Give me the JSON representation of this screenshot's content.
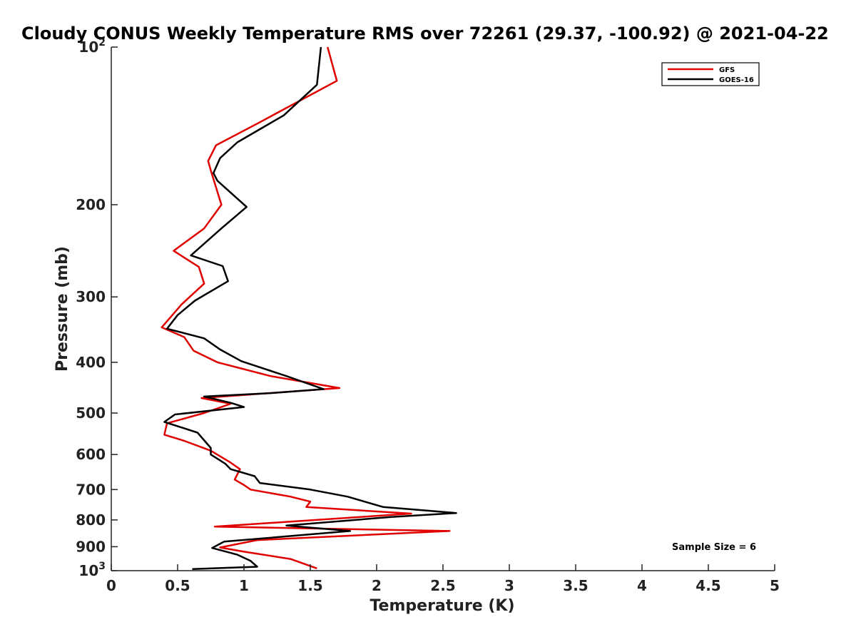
{
  "chart_data": {
    "type": "line",
    "title": "Cloudy CONUS Weekly Temperature RMS over 72261 (29.37, -100.92) @ 2021-04-22",
    "xlabel": "Temperature (K)",
    "ylabel": "Pressure (mb)",
    "xlim": [
      0,
      5
    ],
    "ylim": [
      100,
      1000
    ],
    "y_scale": "log",
    "y_reversed": true,
    "grid": false,
    "legend_position": "top-right",
    "x_ticks": [
      {
        "value": 0,
        "label": "0"
      },
      {
        "value": 0.5,
        "label": "0.5"
      },
      {
        "value": 1,
        "label": "1"
      },
      {
        "value": 1.5,
        "label": "1.5"
      },
      {
        "value": 2,
        "label": "2"
      },
      {
        "value": 2.5,
        "label": "2.5"
      },
      {
        "value": 3,
        "label": "3"
      },
      {
        "value": 3.5,
        "label": "3.5"
      },
      {
        "value": 4,
        "label": "4"
      },
      {
        "value": 4.5,
        "label": "4.5"
      },
      {
        "value": 5,
        "label": "5"
      }
    ],
    "y_ticks": [
      {
        "value": 100,
        "base": "10",
        "exp": "2"
      },
      {
        "value": 200,
        "label": "200"
      },
      {
        "value": 300,
        "label": "300"
      },
      {
        "value": 400,
        "label": "400"
      },
      {
        "value": 500,
        "label": "500"
      },
      {
        "value": 600,
        "label": "600"
      },
      {
        "value": 700,
        "label": "700"
      },
      {
        "value": 800,
        "label": "800"
      },
      {
        "value": 900,
        "label": "900"
      },
      {
        "value": 1000,
        "base": "10",
        "exp": "3"
      }
    ],
    "annotation": "Sample Size = 6",
    "series": [
      {
        "name": "GFS",
        "color": "#e00000",
        "points": [
          [
            1.63,
            100
          ],
          [
            1.7,
            116
          ],
          [
            1.1,
            140
          ],
          [
            0.79,
            154
          ],
          [
            0.73,
            165
          ],
          [
            0.75,
            172
          ],
          [
            0.83,
            200
          ],
          [
            0.7,
            222
          ],
          [
            0.47,
            245
          ],
          [
            0.66,
            263
          ],
          [
            0.7,
            283
          ],
          [
            0.53,
            310
          ],
          [
            0.38,
            343
          ],
          [
            0.55,
            358
          ],
          [
            0.62,
            380
          ],
          [
            0.8,
            400
          ],
          [
            1.2,
            425
          ],
          [
            1.72,
            448
          ],
          [
            0.68,
            468
          ],
          [
            0.9,
            480
          ],
          [
            0.7,
            500
          ],
          [
            0.42,
            523
          ],
          [
            0.4,
            550
          ],
          [
            0.55,
            565
          ],
          [
            0.75,
            590
          ],
          [
            0.9,
            622
          ],
          [
            0.97,
            640
          ],
          [
            0.93,
            670
          ],
          [
            1.0,
            686
          ],
          [
            1.05,
            700
          ],
          [
            1.35,
            722
          ],
          [
            1.5,
            738
          ],
          [
            1.47,
            756
          ],
          [
            2.26,
            778
          ],
          [
            0.78,
            824
          ],
          [
            2.55,
            840
          ],
          [
            1.1,
            874
          ],
          [
            0.82,
            903
          ],
          [
            1.0,
            920
          ],
          [
            1.35,
            950
          ],
          [
            1.55,
            990
          ]
        ]
      },
      {
        "name": "GOES-16",
        "color": "#000000",
        "points": [
          [
            1.58,
            100
          ],
          [
            1.55,
            118
          ],
          [
            1.3,
            135
          ],
          [
            0.95,
            152
          ],
          [
            0.82,
            163
          ],
          [
            0.77,
            174
          ],
          [
            0.8,
            180
          ],
          [
            1.02,
            202
          ],
          [
            0.83,
            222
          ],
          [
            0.6,
            250
          ],
          [
            0.84,
            262
          ],
          [
            0.88,
            280
          ],
          [
            0.63,
            305
          ],
          [
            0.5,
            325
          ],
          [
            0.42,
            345
          ],
          [
            0.7,
            360
          ],
          [
            0.82,
            378
          ],
          [
            0.98,
            398
          ],
          [
            1.32,
            425
          ],
          [
            1.6,
            450
          ],
          [
            1.2,
            458
          ],
          [
            0.7,
            465
          ],
          [
            0.9,
            478
          ],
          [
            1.0,
            487
          ],
          [
            0.48,
            503
          ],
          [
            0.4,
            520
          ],
          [
            0.65,
            545
          ],
          [
            0.75,
            583
          ],
          [
            0.75,
            600
          ],
          [
            0.86,
            625
          ],
          [
            0.9,
            640
          ],
          [
            1.08,
            660
          ],
          [
            1.12,
            680
          ],
          [
            1.5,
            700
          ],
          [
            1.78,
            722
          ],
          [
            2.05,
            756
          ],
          [
            2.6,
            776
          ],
          [
            2.1,
            790
          ],
          [
            1.32,
            820
          ],
          [
            1.8,
            840
          ],
          [
            0.85,
            880
          ],
          [
            0.76,
            905
          ],
          [
            0.95,
            932
          ],
          [
            1.05,
            958
          ],
          [
            1.1,
            983
          ],
          [
            0.61,
            993
          ]
        ]
      }
    ]
  }
}
